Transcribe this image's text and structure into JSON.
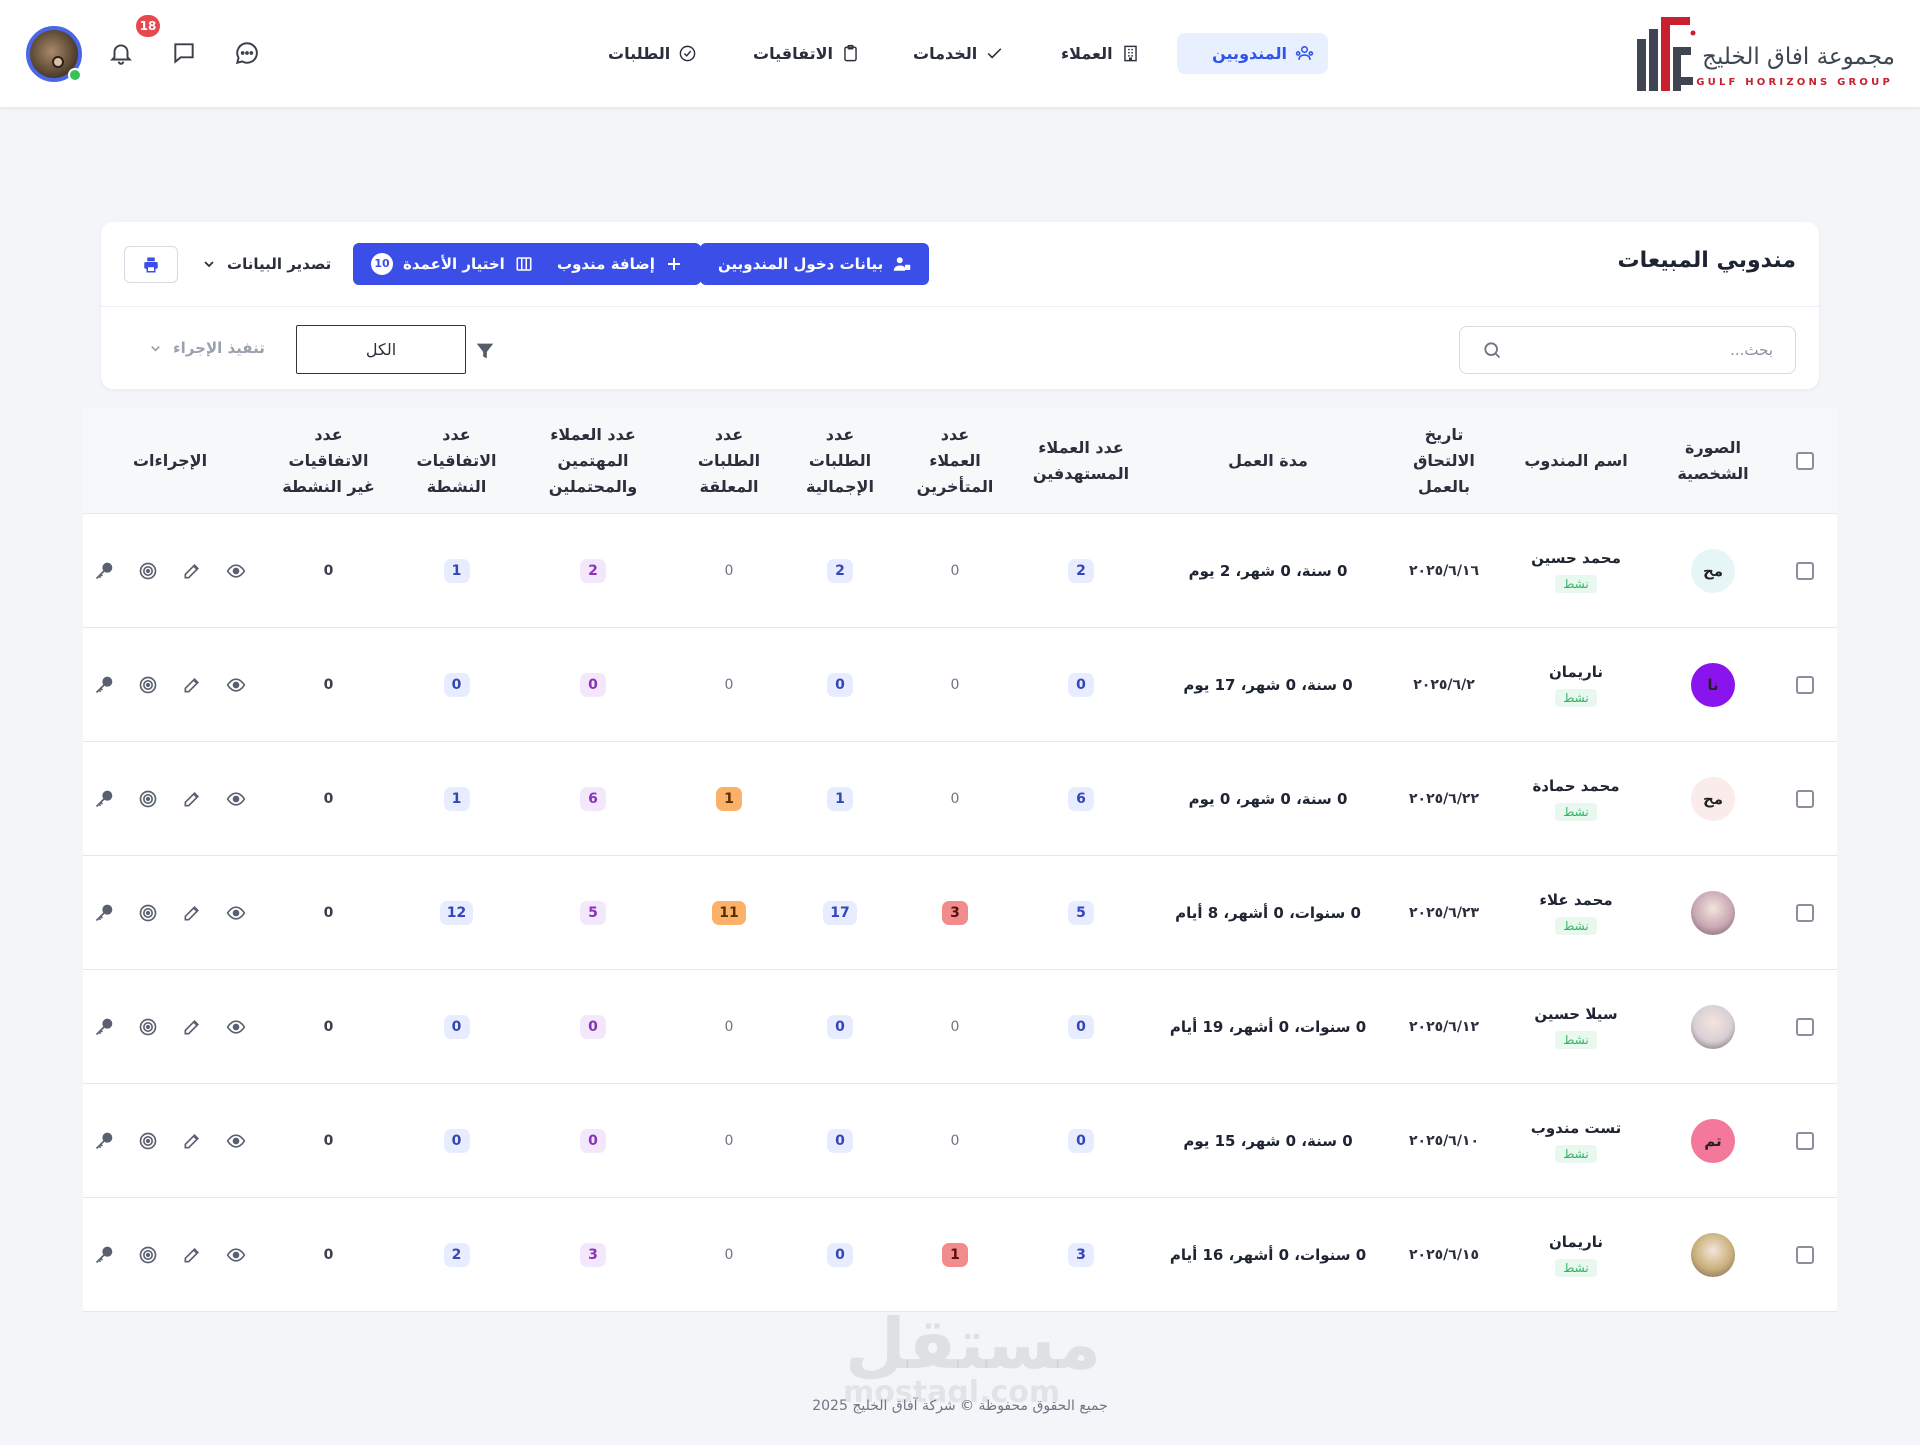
{
  "brand": {
    "name_ar": "مجموعة افاق الخليج",
    "name_en": "GULF HORIZONS GROUP",
    "primary_color": "#3b4ee8",
    "accent_color": "#c8202f"
  },
  "nav": {
    "items": [
      {
        "label": "المندوبين",
        "icon": "users-icon",
        "active": true
      },
      {
        "label": "العملاء",
        "icon": "building-icon",
        "active": false
      },
      {
        "label": "الخدمات",
        "icon": "check-icon",
        "active": false
      },
      {
        "label": "الاتفاقيات",
        "icon": "clipboard-icon",
        "active": false
      },
      {
        "label": "الطلبات",
        "icon": "check-circle-icon",
        "active": false
      }
    ]
  },
  "header_tools": {
    "notifications_count": "18",
    "icons": [
      "chat-dots-icon",
      "message-icon",
      "bell-icon"
    ]
  },
  "panel": {
    "title": "مندوبي المبيعات",
    "login_data_button": "بيانات دخول المندوبين",
    "add_rep_button": "إضافة مندوب",
    "choose_columns_button": "اختيار الأعمدة",
    "columns_count": "10",
    "export_label": "تصدير البيانات",
    "search_placeholder": "بحث...",
    "filter_value": "الكل",
    "action_placeholder": "تنفيذ الإجراء"
  },
  "table": {
    "headers": {
      "photo": "الصورة\nالشخصية",
      "name": "اسم المندوب",
      "join_date": "تاريخ\nالالتحاق\nبالعمل",
      "duration": "مدة العمل",
      "target_clients": "عدد العملاء\nالمستهدفين",
      "late_clients": "عدد\nالعملاء\nالمتأخرين",
      "total_orders": "عدد\nالطلبات\nالإجمالية",
      "pending_orders": "عدد\nالطلبات\nالمعلقة",
      "interested_clients": "عدد العملاء\nالمهتمين\nوالمحتملين",
      "active_agreements": "عدد\nالاتفاقيات\nالنشطة",
      "inactive_agreements": "عدد\nالاتفاقيات\nغير النشطة",
      "actions": "الإجراءات"
    },
    "rows": [
      {
        "initials": "مح",
        "avatar_bg": "#e6f6f6",
        "avatar_type": "initials",
        "name": "محمد حسين",
        "status": "نشط",
        "join_date": "٢٠٢٥/٦/١٦",
        "duration": "0 سنة، 0 شهر، 2 يوم",
        "target": "2",
        "late": "0",
        "total": "2",
        "pending": "0",
        "interested": "2",
        "active": "1",
        "inactive": "0"
      },
      {
        "initials": "نا",
        "avatar_bg": "#8a14ee",
        "avatar_type": "initials",
        "name": "ناريمان",
        "status": "نشط",
        "join_date": "٢٠٢٥/٦/٢",
        "duration": "0 سنة، 0 شهر، 17 يوم",
        "target": "0",
        "late": "0",
        "total": "0",
        "pending": "0",
        "interested": "0",
        "active": "0",
        "inactive": "0"
      },
      {
        "initials": "مح",
        "avatar_bg": "#fbecec",
        "avatar_type": "initials",
        "name": "محمد حمادة",
        "status": "نشط",
        "join_date": "٢٠٢٥/٦/٢٢",
        "duration": "0 سنة، 0 شهر، 0 يوم",
        "target": "6",
        "late": "0",
        "total": "1",
        "pending": "1",
        "interested": "6",
        "active": "1",
        "inactive": "0"
      },
      {
        "initials": "",
        "avatar_bg": "#c9a7b4",
        "avatar_type": "photo",
        "name": "محمد علاء",
        "status": "نشط",
        "join_date": "٢٠٢٥/٦/٢٣",
        "duration": "0 سنوات، 0 أشهر، 8 أيام",
        "target": "5",
        "late": "3",
        "total": "17",
        "pending": "11",
        "interested": "5",
        "active": "12",
        "inactive": "0"
      },
      {
        "initials": "",
        "avatar_bg": "#d8cfd6",
        "avatar_type": "photo",
        "name": "سيلا حسين",
        "status": "نشط",
        "join_date": "٢٠٢٥/٦/١٢",
        "duration": "0 سنوات، 0 أشهر، 19 أيام",
        "target": "0",
        "late": "0",
        "total": "0",
        "pending": "0",
        "interested": "0",
        "active": "0",
        "inactive": "0"
      },
      {
        "initials": "تم",
        "avatar_bg": "#f3789a",
        "avatar_type": "initials",
        "name": "تست مندوب",
        "status": "نشط",
        "join_date": "٢٠٢٥/٦/١٠",
        "duration": "0 سنة، 0 شهر، 15 يوم",
        "target": "0",
        "late": "0",
        "total": "0",
        "pending": "0",
        "interested": "0",
        "active": "0",
        "inactive": "0"
      },
      {
        "initials": "",
        "avatar_bg": "#c9b07a",
        "avatar_type": "photo",
        "name": "ناريمان",
        "status": "نشط",
        "join_date": "٢٠٢٥/٦/١٥",
        "duration": "0 سنوات، 0 أشهر، 16 أيام",
        "target": "3",
        "late": "1",
        "total": "0",
        "pending": "0",
        "interested": "3",
        "active": "2",
        "inactive": "0"
      }
    ],
    "row_action_icons": [
      "eye-icon",
      "edit-icon",
      "target-icon",
      "key-icon"
    ]
  },
  "footer": {
    "copyright": "جميع الحقوق محفوظة © شركة آفاق الخليج 2025",
    "watermark": "مستقل",
    "watermark_sub": "mostaql.com"
  }
}
